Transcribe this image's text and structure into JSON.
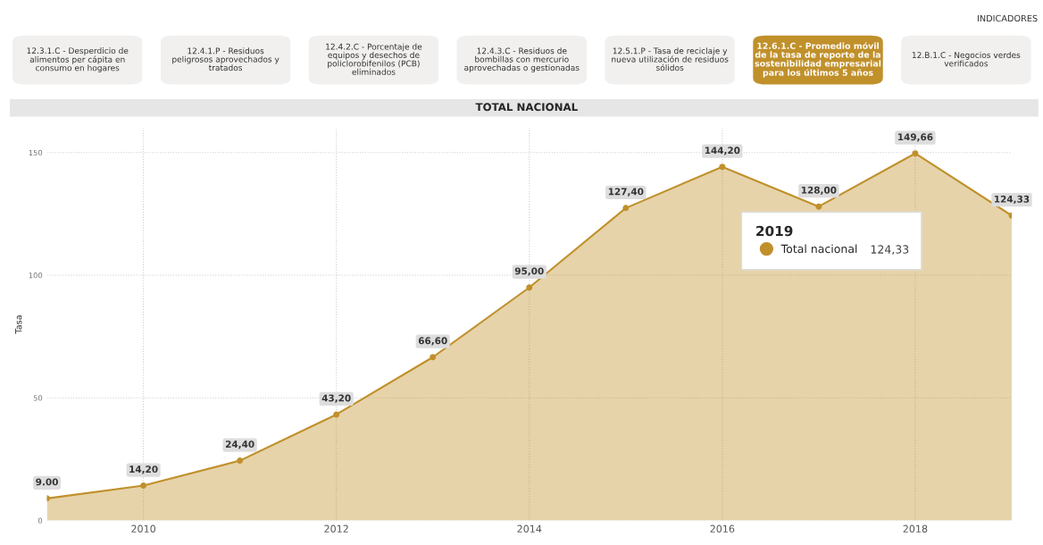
{
  "chart_data": {
    "type": "area",
    "title": "TOTAL NACIONAL",
    "ylabel": "Tasa",
    "x": [
      2009,
      2010,
      2011,
      2012,
      2013,
      2014,
      2015,
      2016,
      2017,
      2018,
      2019
    ],
    "series": [
      {
        "name": "Total nacional",
        "color": "#c0902b",
        "values": [
          9.0,
          14.2,
          24.4,
          43.2,
          66.6,
          95.0,
          127.4,
          144.2,
          128.0,
          149.66,
          124.33
        ],
        "value_labels": [
          "9.00",
          "14,20",
          "24,40",
          "43,20",
          "66,60",
          "95,00",
          "127,40",
          "144,20",
          "128,00",
          "149,66",
          "124,33"
        ]
      }
    ],
    "xlim": [
      2009,
      2019
    ],
    "xticks": [
      2010,
      2012,
      2014,
      2016,
      2018
    ],
    "ylim": [
      0,
      160
    ],
    "yticks": [
      0,
      50,
      100,
      150
    ],
    "grid": true,
    "marker": "circle",
    "legend": "top right",
    "legend_title": "2019",
    "annotations": [
      "INDICADORES",
      "12.3.1.C - Desperdicio de\nalimentos per cápita en\nconsumo en hogares",
      "12.4.1.P - Residuos\npeligrosos aprovechados y\ntratados",
      "12.4.2.C - Porcentaje de\nequipos y desechos de\npoliclorobifenilos (PCB)\neliminados",
      "12.4.3.C - Residuos de\nbombillas con mercurio\naprovechadas o gestionadas",
      "12.5.1.P - Tasa de reciclaje y\nnueva utilización de residuos\nsólidos",
      "12.6.1.C - Promedio móvil\nde la tasa de reporte de la\nsostenibilidad empresarial\npara los últimos 5 años",
      "12.B.1.C - Negocios verdes\nverificados",
      "124,33"
    ]
  }
}
